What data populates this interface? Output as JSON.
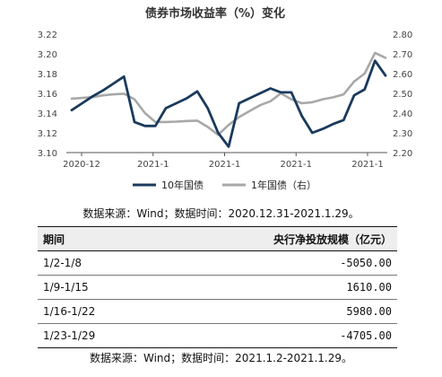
{
  "chart_data": {
    "type": "line",
    "title": "债券市场收益率（%）变化",
    "x_tick_labels": [
      "2020-12",
      "2021-1",
      "2021-1",
      "2021-1",
      "2021-1"
    ],
    "y_left": {
      "min": 3.1,
      "max": 3.22,
      "ticks": [
        "3.10",
        "3.12",
        "3.14",
        "3.16",
        "3.18",
        "3.20",
        "3.22"
      ]
    },
    "y_right": {
      "min": 2.2,
      "max": 2.8,
      "ticks": [
        "2.20",
        "2.30",
        "2.40",
        "2.50",
        "2.60",
        "2.70",
        "2.80"
      ]
    },
    "grid": false,
    "legend_position": "bottom",
    "series": [
      {
        "name": "10年国债",
        "axis": "left",
        "color": "#1a3a5c",
        "values": [
          3.143,
          3.15,
          3.157,
          3.163,
          3.17,
          3.177,
          3.131,
          3.127,
          3.127,
          3.145,
          3.15,
          3.155,
          3.162,
          3.145,
          3.12,
          3.106,
          3.15,
          3.155,
          3.16,
          3.165,
          3.161,
          3.161,
          3.137,
          3.12,
          3.124,
          3.129,
          3.133,
          3.158,
          3.164,
          3.193,
          3.178
        ]
      },
      {
        "name": "1年国债（右）",
        "axis": "right",
        "color": "#a8a8a8",
        "values": [
          2.473,
          2.477,
          2.481,
          2.49,
          2.495,
          2.498,
          2.47,
          2.4,
          2.355,
          2.355,
          2.357,
          2.36,
          2.362,
          2.33,
          2.29,
          2.34,
          2.38,
          2.41,
          2.44,
          2.46,
          2.5,
          2.47,
          2.45,
          2.455,
          2.47,
          2.48,
          2.495,
          2.56,
          2.6,
          2.705,
          2.68
        ]
      }
    ]
  },
  "source_note_1": "数据来源：Wind；数据时间：2020.12.31-2021.1.29。",
  "table": {
    "headers": [
      "期间",
      "央行净投放规模（亿元）"
    ],
    "rows": [
      [
        "1/2-1/8",
        "-5050.00"
      ],
      [
        "1/9-1/15",
        "1610.00"
      ],
      [
        "1/16-1/22",
        "5980.00"
      ],
      [
        "1/23-1/29",
        "-4705.00"
      ]
    ]
  },
  "source_note_2": "数据来源：Wind；数据时间：2021.1.2-2021.1.29。"
}
